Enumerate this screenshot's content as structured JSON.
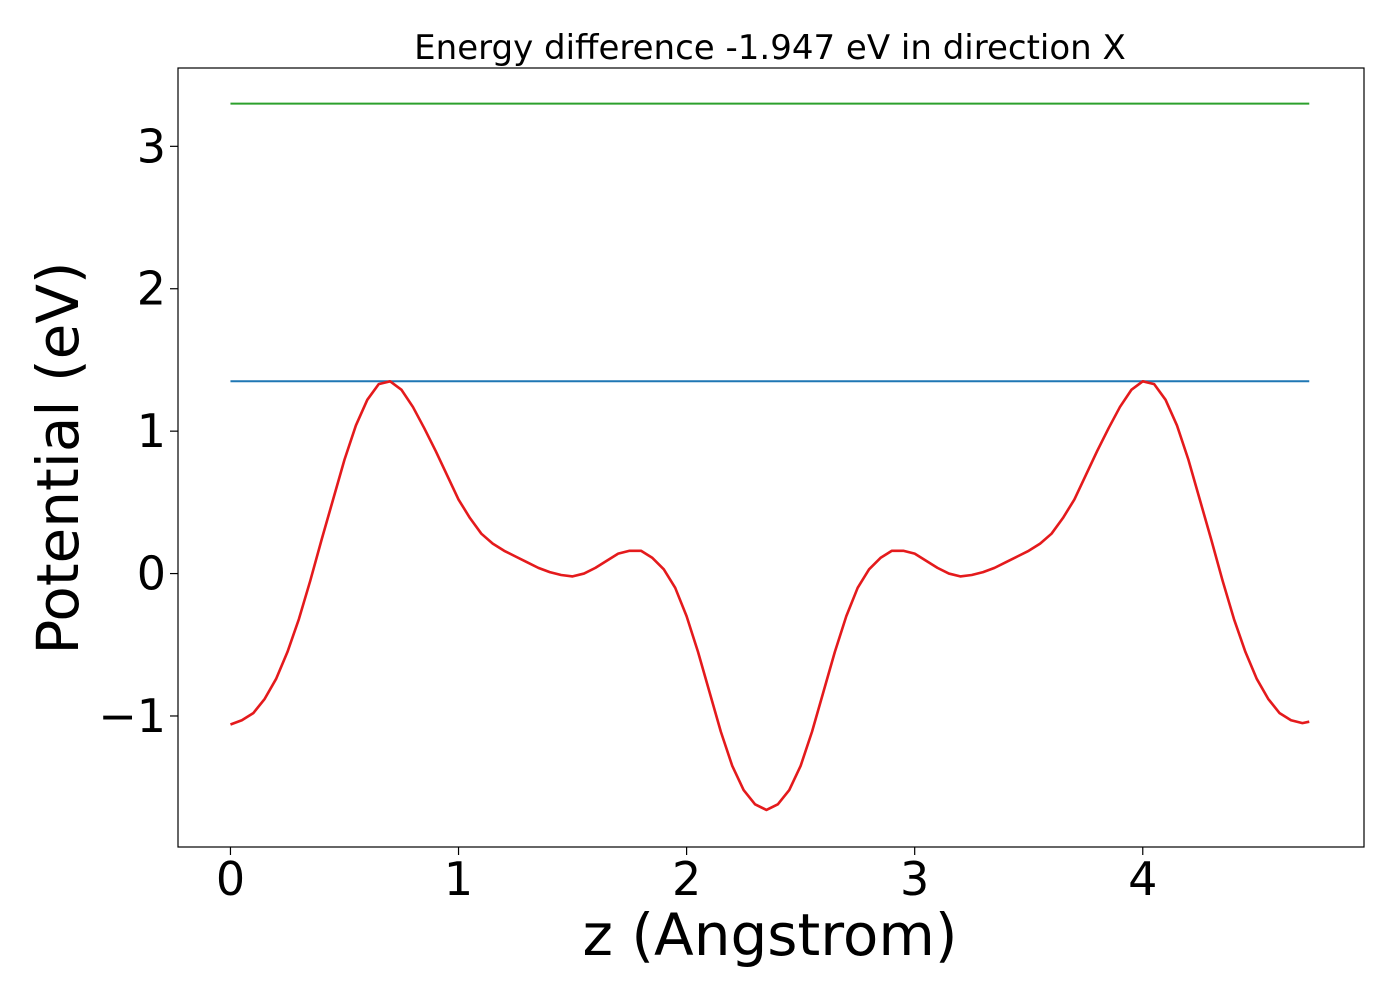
{
  "chart_data": {
    "type": "line",
    "title": "Energy difference -1.947 eV in direction X",
    "xlabel": "z (Angstrom)",
    "ylabel": "Potential (eV)",
    "xlim": [
      -0.23,
      4.97
    ],
    "ylim": [
      -1.92,
      3.55
    ],
    "xticks": [
      {
        "value": 0,
        "label": "0"
      },
      {
        "value": 1,
        "label": "1"
      },
      {
        "value": 2,
        "label": "2"
      },
      {
        "value": 3,
        "label": "3"
      },
      {
        "value": 4,
        "label": "4"
      }
    ],
    "yticks": [
      {
        "value": -1,
        "label": "−1"
      },
      {
        "value": 0,
        "label": "0"
      },
      {
        "value": 1,
        "label": "1"
      },
      {
        "value": 2,
        "label": "2"
      },
      {
        "value": 3,
        "label": "3"
      }
    ],
    "grid": false,
    "series": [
      {
        "color": "#2ca02c",
        "x": [
          0,
          4.73
        ],
        "y": [
          3.3,
          3.3
        ]
      },
      {
        "color": "#1f77b4",
        "x": [
          0,
          4.73
        ],
        "y": [
          1.35,
          1.35
        ]
      },
      {
        "color": "#e41a1c",
        "x": [
          0.0,
          0.05,
          0.1,
          0.15,
          0.2,
          0.25,
          0.3,
          0.35,
          0.4,
          0.45,
          0.5,
          0.55,
          0.6,
          0.65,
          0.7,
          0.75,
          0.8,
          0.85,
          0.9,
          0.95,
          1.0,
          1.05,
          1.1,
          1.15,
          1.2,
          1.25,
          1.3,
          1.35,
          1.4,
          1.45,
          1.5,
          1.55,
          1.6,
          1.65,
          1.7,
          1.75,
          1.8,
          1.85,
          1.9,
          1.95,
          2.0,
          2.05,
          2.1,
          2.15,
          2.2,
          2.25,
          2.3,
          2.35,
          2.4,
          2.45,
          2.5,
          2.55,
          2.6,
          2.65,
          2.7,
          2.75,
          2.8,
          2.85,
          2.9,
          2.95,
          3.0,
          3.05,
          3.1,
          3.15,
          3.2,
          3.25,
          3.3,
          3.35,
          3.4,
          3.45,
          3.5,
          3.55,
          3.6,
          3.65,
          3.7,
          3.75,
          3.8,
          3.85,
          3.9,
          3.95,
          4.0,
          4.05,
          4.1,
          4.15,
          4.2,
          4.25,
          4.3,
          4.35,
          4.4,
          4.45,
          4.5,
          4.55,
          4.6,
          4.65,
          4.7,
          4.73
        ],
        "y": [
          -1.06,
          -1.03,
          -0.98,
          -0.88,
          -0.74,
          -0.55,
          -0.32,
          -0.05,
          0.24,
          0.52,
          0.8,
          1.04,
          1.22,
          1.33,
          1.35,
          1.29,
          1.17,
          1.02,
          0.86,
          0.69,
          0.52,
          0.39,
          0.28,
          0.21,
          0.16,
          0.12,
          0.08,
          0.04,
          0.01,
          -0.01,
          -0.02,
          0.0,
          0.04,
          0.09,
          0.14,
          0.16,
          0.16,
          0.11,
          0.03,
          -0.1,
          -0.3,
          -0.55,
          -0.83,
          -1.11,
          -1.35,
          -1.52,
          -1.62,
          -1.66,
          -1.62,
          -1.52,
          -1.35,
          -1.11,
          -0.83,
          -0.55,
          -0.3,
          -0.1,
          0.03,
          0.11,
          0.16,
          0.16,
          0.14,
          0.09,
          0.04,
          0.0,
          -0.02,
          -0.01,
          0.01,
          0.04,
          0.08,
          0.12,
          0.16,
          0.21,
          0.28,
          0.39,
          0.52,
          0.69,
          0.86,
          1.02,
          1.17,
          1.29,
          1.35,
          1.33,
          1.22,
          1.04,
          0.8,
          0.52,
          0.24,
          -0.05,
          -0.32,
          -0.55,
          -0.74,
          -0.88,
          -0.98,
          -1.03,
          -1.05,
          -1.04
        ]
      }
    ]
  }
}
